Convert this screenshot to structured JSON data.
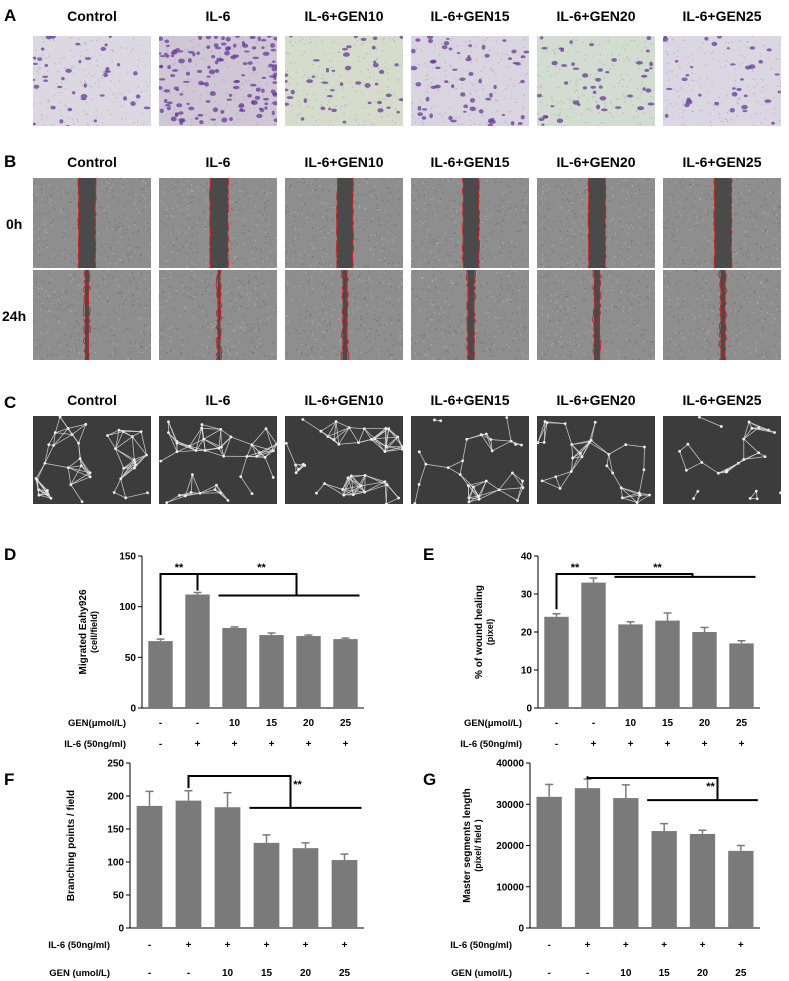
{
  "panels": {
    "A": {
      "letter": "A",
      "labels": [
        "Control",
        "IL-6",
        "IL-6+GEN10",
        "IL-6+GEN15",
        "IL-6+GEN20",
        "IL-6+GEN25"
      ]
    },
    "B": {
      "letter": "B",
      "labels": [
        "Control",
        "IL-6",
        "IL-6+GEN10",
        "IL-6+GEN15",
        "IL-6+GEN20",
        "IL-6+GEN25"
      ],
      "rows": [
        "0h",
        "24h"
      ]
    },
    "C": {
      "letter": "C",
      "labels": [
        "Control",
        "IL-6",
        "IL-6+GEN10",
        "IL-6+GEN15",
        "IL-6+GEN20",
        "IL-6+GEN25"
      ]
    }
  },
  "colors": {
    "bar": "#7a7a7a",
    "crystal_violet": "#6a3a9a",
    "wound_edge": "#cc2222",
    "tube_bg": "#3c3c3c"
  },
  "chart_data": [
    {
      "panel": "D",
      "type": "bar",
      "ylabel_line1": "Migrated Eahy926",
      "ylabel_line2": "(cell/field)",
      "ylim": [
        0,
        150
      ],
      "yticks": [
        0,
        50,
        100,
        150
      ],
      "values": [
        66,
        112,
        79,
        72,
        71,
        68
      ],
      "errors": [
        2,
        2,
        1,
        2,
        1,
        1
      ],
      "rows": [
        {
          "label": "GEN(μmol/L)",
          "values": [
            "-",
            "-",
            "10",
            "15",
            "20",
            "25"
          ]
        },
        {
          "label": "IL-6 (50ng/ml)",
          "values": [
            "-",
            "+",
            "+",
            "+",
            "+",
            "+"
          ]
        }
      ],
      "significance": [
        "**",
        "**"
      ]
    },
    {
      "panel": "E",
      "type": "bar",
      "ylabel_line1": "% of wound healing",
      "ylabel_line2": "(pixel)",
      "ylim": [
        0,
        40
      ],
      "yticks": [
        0,
        10,
        20,
        30,
        40
      ],
      "values": [
        24,
        33,
        22,
        23,
        20,
        17
      ],
      "errors": [
        0.8,
        1.2,
        0.7,
        2.0,
        1.2,
        0.7
      ],
      "rows": [
        {
          "label": "GEN(μmol/L)",
          "values": [
            "-",
            "-",
            "10",
            "15",
            "20",
            "25"
          ]
        },
        {
          "label": "IL-6 (50ng/ml)",
          "values": [
            "-",
            "+",
            "+",
            "+",
            "+",
            "+"
          ]
        }
      ],
      "significance": [
        "**",
        "**"
      ]
    },
    {
      "panel": "F",
      "type": "bar",
      "ylabel_line1": "Branching points / field",
      "ylabel_line2": "",
      "ylim": [
        0,
        250
      ],
      "yticks": [
        0,
        50,
        100,
        150,
        200,
        250
      ],
      "values": [
        185,
        193,
        183,
        129,
        121,
        103
      ],
      "errors": [
        22,
        15,
        22,
        12,
        8,
        9
      ],
      "rows": [
        {
          "label": "IL-6 (50ng/ml)",
          "values": [
            "-",
            "+",
            "+",
            "+",
            "+",
            "+"
          ]
        },
        {
          "label": "GEN (umol/L)",
          "values": [
            "-",
            "-",
            "10",
            "15",
            "20",
            "25"
          ]
        }
      ],
      "significance": [
        "**"
      ]
    },
    {
      "panel": "G",
      "type": "bar",
      "ylabel_line1": "Master segments length",
      "ylabel_line2": "(pixel/ field )",
      "ylim": [
        0,
        40000
      ],
      "yticks": [
        0,
        10000,
        20000,
        30000,
        40000
      ],
      "values": [
        31800,
        33900,
        31500,
        23500,
        22800,
        18700
      ],
      "errors": [
        3000,
        2200,
        3200,
        1800,
        900,
        1300
      ],
      "rows": [
        {
          "label": "IL-6 (50ng/ml)",
          "values": [
            "-",
            "+",
            "+",
            "+",
            "+",
            "+"
          ]
        },
        {
          "label": "GEN (umol/L)",
          "values": [
            "-",
            "-",
            "10",
            "15",
            "20",
            "25"
          ]
        }
      ],
      "significance": [
        "**"
      ]
    }
  ]
}
